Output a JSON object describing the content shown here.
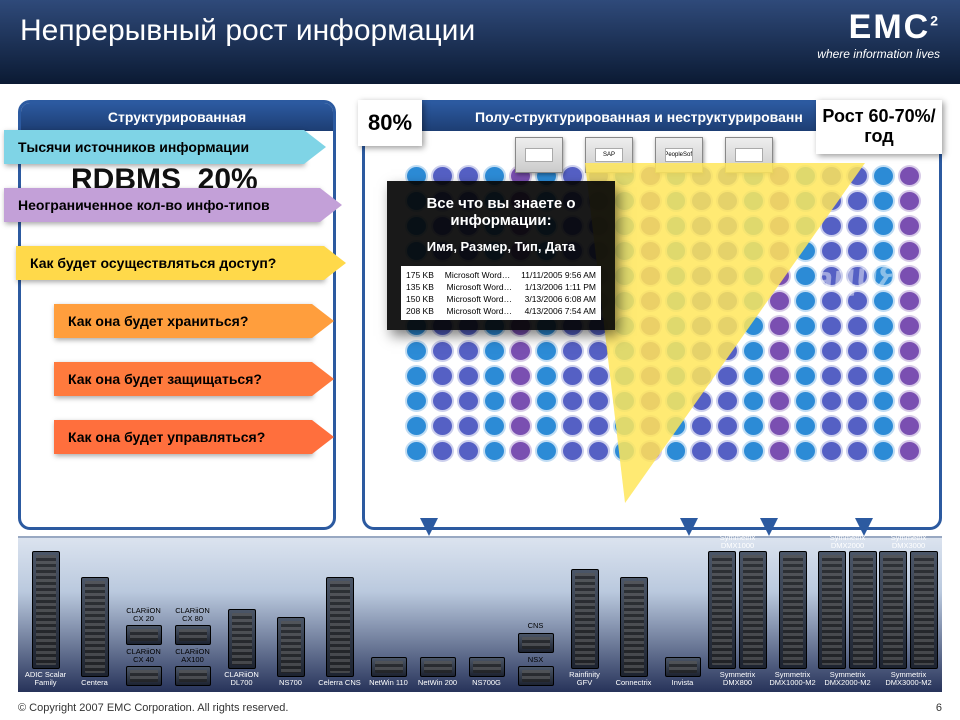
{
  "header": {
    "title": "Непрерывный рост информации",
    "logo_text": "EMC",
    "logo_sup": "2",
    "tagline": "where information lives"
  },
  "left_panel": {
    "heading": "Структурированная",
    "hidden_text": "RDBMS",
    "hidden_pct": "20%"
  },
  "right_panel": {
    "heading": "Полу-структурированная и неструктурированн",
    "pct_label": "80%",
    "growth_label": "Рост 60-70%/год",
    "info_word": "ация",
    "apps": [
      "",
      "SAP",
      "PeopleSoft",
      ""
    ]
  },
  "dark_box": {
    "line1": "Все что вы знаете о информации:",
    "line2": "Имя, Размер, Тип, Дата",
    "files": [
      {
        "size": "175 KB",
        "app": "Microsoft Word…",
        "date": "11/11/2005 9:56 AM"
      },
      {
        "size": "135 KB",
        "app": "Microsoft Word…",
        "date": "1/13/2006 1:11 PM"
      },
      {
        "size": "150 KB",
        "app": "Microsoft Word…",
        "date": "3/13/2006 6:08 AM"
      },
      {
        "size": "208 KB",
        "app": "Microsoft Word…",
        "date": "4/13/2006 7:54 AM"
      }
    ]
  },
  "arrows": [
    {
      "text": "Тысячи источников информации",
      "color": "#7fd4e6"
    },
    {
      "text": "Неограниченное кол-во инфо-типов",
      "color": "#c3a0d8"
    },
    {
      "text": "Как будет осуществляться доступ?",
      "color": "#ffd94a"
    },
    {
      "text": "Как она будет храниться?",
      "color": "#ff9e3d"
    },
    {
      "text": "Как она будет защищаться?",
      "color": "#ff7a3d"
    },
    {
      "text": "Как она будет управляться?",
      "color": "#ff6f3d"
    }
  ],
  "mosaic_colors": [
    "#2c8bd6",
    "#7cc142",
    "#f4b400",
    "#e94e3c",
    "#7a4fb1",
    "#d24f98",
    "#3aa6a0",
    "#f37b1d",
    "#5560c4",
    "#c23f6e"
  ],
  "mosaic_count": 240,
  "products": [
    {
      "label": "ADIC Scalar Family",
      "shape": "xtall",
      "single": true
    },
    {
      "label": "Centera",
      "shape": "tall",
      "single": true
    },
    {
      "stackLabels": [
        "CLARiiON CX 20",
        "CLARiiON CX 40"
      ],
      "shape": "small"
    },
    {
      "stackLabels": [
        "CLARiiON CX 80",
        "CLARiiON AX100"
      ],
      "shape": "small"
    },
    {
      "label": "CLARiiON DL700",
      "shape": "med",
      "single": true
    },
    {
      "label": "NS700",
      "shape": "med",
      "single": true
    },
    {
      "label": "Celerra CNS",
      "shape": "tall",
      "single": true
    },
    {
      "label": "NetWin 110",
      "shape": "small",
      "single": true
    },
    {
      "label": "NetWin 200",
      "shape": "small",
      "single": true
    },
    {
      "label": "NS700G",
      "shape": "small",
      "single": true
    },
    {
      "stackLabels": [
        "CNS",
        "NSX"
      ],
      "shape": "tall",
      "pair": true
    },
    {
      "label": "Rainfinity GFV",
      "shape": "tall",
      "single": true
    },
    {
      "label": "Connectrix",
      "shape": "tall",
      "single": true
    },
    {
      "label": "Invista",
      "shape": "small",
      "single": true
    },
    {
      "stackLabelsTop": "Symmetrix DMX1000",
      "label": "Symmetrix DMX800",
      "shape": "xtall",
      "pair": true
    },
    {
      "label": "Symmetrix DMX1000-M2",
      "shape": "xtall",
      "single": true
    },
    {
      "stackLabelsTop": "Symmetrix DMX2000",
      "label": "Symmetrix DMX2000-M2",
      "shape": "xtall",
      "pair": true
    },
    {
      "stackLabelsTop": "Symmetrix DMX3000",
      "label": "Symmetrix DMX3000-M2",
      "shape": "xtall",
      "pair": true
    }
  ],
  "footer": {
    "copyright": "© Copyright 2007 EMC Corporation. All rights reserved.",
    "page": "6"
  }
}
